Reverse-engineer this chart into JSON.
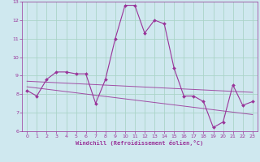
{
  "xlabel": "Windchill (Refroidissement éolien,°C)",
  "bg_color": "#cfe8ef",
  "line_color": "#993399",
  "grid_color": "#aad4c8",
  "xlim": [
    -0.5,
    23.5
  ],
  "ylim": [
    6,
    13
  ],
  "xticks": [
    0,
    1,
    2,
    3,
    4,
    5,
    6,
    7,
    8,
    9,
    10,
    11,
    12,
    13,
    14,
    15,
    16,
    17,
    18,
    19,
    20,
    21,
    22,
    23
  ],
  "yticks": [
    6,
    7,
    8,
    9,
    10,
    11,
    12,
    13
  ],
  "series1_x": [
    0,
    1,
    2,
    3,
    4,
    5,
    6,
    7,
    8,
    9,
    10,
    11,
    12,
    13,
    14,
    15,
    16,
    17,
    18,
    19,
    20,
    21,
    22,
    23
  ],
  "series1_y": [
    8.2,
    7.9,
    8.8,
    9.2,
    9.2,
    9.1,
    9.1,
    7.5,
    8.8,
    11.0,
    12.8,
    12.8,
    11.3,
    12.0,
    11.8,
    9.4,
    7.9,
    7.9,
    7.6,
    6.2,
    6.5,
    8.5,
    7.4,
    7.6
  ],
  "trend1_x": [
    0,
    23
  ],
  "trend1_y": [
    8.7,
    8.1
  ],
  "trend2_x": [
    0,
    23
  ],
  "trend2_y": [
    8.4,
    6.9
  ]
}
